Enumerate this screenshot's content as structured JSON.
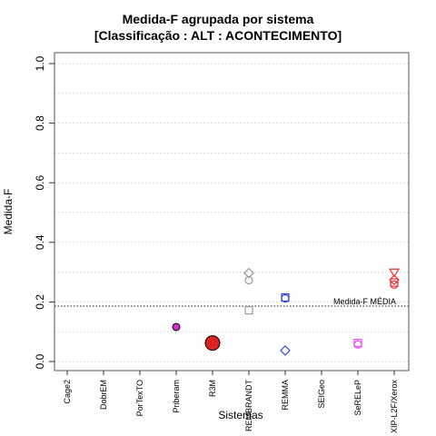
{
  "chart_data": {
    "type": "scatter",
    "title": "Medida-F agrupada por sistema",
    "subtitle": "[Classificação : ALT : ACONTECIMENTO]",
    "xlabel": "Sistemas",
    "ylabel": "Medida-F",
    "ylim": [
      0,
      1
    ],
    "yticks": [
      "0.0",
      "0.2",
      "0.4",
      "0.6",
      "0.8",
      "1.0"
    ],
    "grid": true,
    "categories": [
      "Cage2",
      "DobrEM",
      "PorTexTO",
      "Priberam",
      "R3M",
      "REMBRANDT",
      "REMMA",
      "SEIGeo",
      "SeRELeP",
      "XIP-L2F/Xerox"
    ],
    "reference_line": {
      "label": "Medida-F MÉDIA",
      "value": 0.186
    },
    "points": [
      {
        "category": "Priberam",
        "value": 0.116,
        "shape": "circle-filled",
        "color": "#cc33cc",
        "size": "small"
      },
      {
        "category": "R3M",
        "value": 0.062,
        "shape": "circle-filled",
        "color": "#dd2222",
        "size": "large"
      },
      {
        "category": "REMBRANDT",
        "value": 0.297,
        "shape": "diamond",
        "color": "#999999",
        "size": "small"
      },
      {
        "category": "REMBRANDT",
        "value": 0.273,
        "shape": "circle",
        "color": "#999999",
        "size": "small"
      },
      {
        "category": "REMBRANDT",
        "value": 0.172,
        "shape": "square",
        "color": "#999999",
        "size": "small"
      },
      {
        "category": "REMMA",
        "value": 0.215,
        "shape": "square",
        "color": "#3344dd",
        "size": "small"
      },
      {
        "category": "REMMA",
        "value": 0.212,
        "shape": "circle",
        "color": "#3344dd",
        "size": "small"
      },
      {
        "category": "REMMA",
        "value": 0.037,
        "shape": "diamond",
        "color": "#3344dd",
        "size": "small"
      },
      {
        "category": "SeRELeP",
        "value": 0.062,
        "shape": "square",
        "color": "#ee44ee",
        "size": "small"
      },
      {
        "category": "SeRELeP",
        "value": 0.057,
        "shape": "circle",
        "color": "#ee44ee",
        "size": "small"
      },
      {
        "category": "XIP-L2F/Xerox",
        "value": 0.298,
        "shape": "triangle-down",
        "color": "#ee3333",
        "size": "small"
      },
      {
        "category": "XIP-L2F/Xerox",
        "value": 0.274,
        "shape": "diamond",
        "color": "#ee3333",
        "size": "small"
      },
      {
        "category": "XIP-L2F/Xerox",
        "value": 0.265,
        "shape": "square",
        "color": "#ee3333",
        "size": "small"
      },
      {
        "category": "XIP-L2F/Xerox",
        "value": 0.258,
        "shape": "circle",
        "color": "#ee3333",
        "size": "small"
      }
    ]
  }
}
